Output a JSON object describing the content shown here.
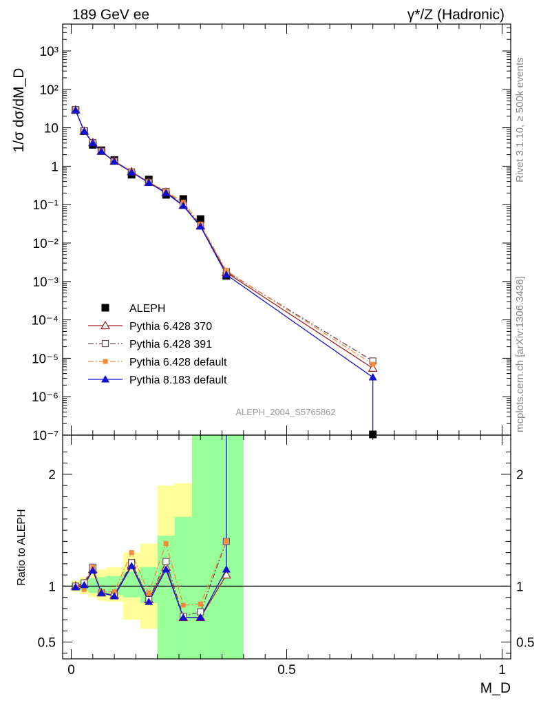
{
  "header": {
    "left_label": "189 GeV ee",
    "right_label": "γ*/Z (Hadronic)"
  },
  "side": {
    "rivet_label": "Rivet 3.1.10, ≥ 500k events",
    "mcplots_label": "mcplots.cern.ch [arXiv:1306.3436]"
  },
  "watermark": "ALEPH_2004_S5765862",
  "colors": {
    "data": "#000000",
    "p370": "#a02020",
    "p391": "#6b4a5a",
    "pdef": "#f58a3a",
    "p8": "#1010d0",
    "band_inner": "#99ff99",
    "band_outer": "#ffff99"
  },
  "chart_data": [
    {
      "type": "line",
      "title": "",
      "ylabel": "1/σ dσ/dM_D",
      "yscale": "log",
      "ylim": [
        1e-07,
        5000
      ],
      "xlim": [
        -0.02,
        1.02
      ],
      "grid": false,
      "legend_position": "left-lower",
      "y_ticks": [
        "10⁻⁷",
        "10⁻⁶",
        "10⁻⁵",
        "10⁻⁴",
        "10⁻³",
        "10⁻²",
        "10⁻¹",
        "1",
        "10",
        "10²",
        "10³"
      ],
      "x": [
        0.01,
        0.03,
        0.05,
        0.07,
        0.1,
        0.14,
        0.18,
        0.22,
        0.26,
        0.3,
        0.36,
        0.7
      ],
      "series": [
        {
          "name": "ALEPH",
          "key": "data",
          "marker": "square-filled",
          "values": [
            29,
            8.2,
            3.6,
            2.6,
            1.45,
            0.6,
            0.45,
            0.18,
            0.14,
            0.042,
            0.0014,
            1e-07
          ]
        },
        {
          "name": "Pythia 6.428 370",
          "key": "p370",
          "marker": "triangle-open",
          "dash": "",
          "values": [
            29,
            8.2,
            4.1,
            2.45,
            1.35,
            0.72,
            0.38,
            0.21,
            0.095,
            0.028,
            0.0017,
            5.5e-06
          ]
        },
        {
          "name": "Pythia 6.428 391",
          "key": "p391",
          "marker": "square-open",
          "dash": "8,3,2,3",
          "values": [
            29,
            8.3,
            4.1,
            2.45,
            1.34,
            0.71,
            0.38,
            0.22,
            0.098,
            0.029,
            0.0018,
            8.5e-06
          ]
        },
        {
          "name": "Pythia 6.428 default",
          "key": "pdef",
          "marker": "square-small",
          "dash": "8,3,2,3",
          "values": [
            28,
            8.0,
            4.1,
            2.45,
            1.37,
            0.74,
            0.39,
            0.22,
            0.115,
            0.031,
            0.0019,
            7e-06
          ]
        },
        {
          "name": "Pythia 8.183 default",
          "key": "p8",
          "marker": "triangle-filled",
          "dash": "",
          "values": [
            28.5,
            8.1,
            4.0,
            2.4,
            1.32,
            0.7,
            0.37,
            0.2,
            0.093,
            0.027,
            0.0015,
            3.2e-06
          ]
        }
      ]
    },
    {
      "type": "line",
      "title": "",
      "xlabel": "M_D",
      "ylabel": "Ratio to ALEPH",
      "ylim": [
        0.35,
        2.35
      ],
      "xlim": [
        -0.02,
        1.02
      ],
      "x_ticks": [
        "0",
        "0.5",
        "1"
      ],
      "y_ticks": [
        "0.5",
        "1",
        "2"
      ],
      "reference_line": 1,
      "x": [
        0.01,
        0.03,
        0.05,
        0.07,
        0.1,
        0.14,
        0.18,
        0.22,
        0.26,
        0.3,
        0.36
      ],
      "bands": {
        "edges": [
          0.0,
          0.02,
          0.04,
          0.06,
          0.08,
          0.12,
          0.16,
          0.2,
          0.24,
          0.28,
          0.32,
          0.4
        ],
        "inner": [
          [
            0.97,
            1.03
          ],
          [
            0.96,
            1.05
          ],
          [
            0.94,
            1.07
          ],
          [
            0.93,
            1.08
          ],
          [
            0.92,
            1.09
          ],
          [
            0.9,
            1.13
          ],
          [
            0.85,
            1.17
          ],
          [
            0.28,
            1.45
          ],
          [
            0.28,
            1.62
          ],
          [
            0.28,
            2.35
          ],
          [
            0.28,
            2.35
          ]
        ],
        "outer": [
          [
            0.95,
            1.05
          ],
          [
            0.93,
            1.08
          ],
          [
            0.9,
            1.12
          ],
          [
            0.87,
            1.15
          ],
          [
            0.86,
            1.17
          ],
          [
            0.7,
            1.3
          ],
          [
            0.62,
            1.38
          ],
          [
            0.28,
            1.9
          ],
          [
            0.28,
            1.92
          ],
          [
            0.28,
            2.35
          ],
          [
            0.28,
            2.35
          ]
        ]
      },
      "series": [
        {
          "name": "Pythia 6.428 370",
          "key": "p370",
          "marker": "triangle-open",
          "dash": "",
          "values": [
            1.0,
            1.02,
            1.15,
            0.94,
            0.92,
            1.19,
            0.88,
            1.17,
            0.72,
            0.72,
            1.1
          ]
        },
        {
          "name": "Pythia 6.428 391",
          "key": "p391",
          "marker": "square-open",
          "dash": "8,3,2,3",
          "values": [
            1.0,
            1.03,
            1.17,
            0.94,
            0.92,
            1.21,
            0.88,
            1.22,
            0.73,
            0.77,
            1.4
          ]
        },
        {
          "name": "Pythia 6.428 default",
          "key": "pdef",
          "marker": "square-small",
          "dash": "8,3,2,3",
          "values": [
            0.99,
            0.97,
            1.17,
            0.95,
            0.95,
            1.3,
            0.94,
            1.38,
            0.83,
            0.84,
            1.4
          ]
        },
        {
          "name": "Pythia 8.183 default",
          "key": "p8",
          "marker": "triangle-filled",
          "dash": "",
          "values": [
            0.99,
            1.01,
            1.14,
            0.94,
            0.91,
            1.18,
            0.86,
            1.15,
            0.72,
            0.72,
            1.15
          ]
        }
      ]
    }
  ]
}
